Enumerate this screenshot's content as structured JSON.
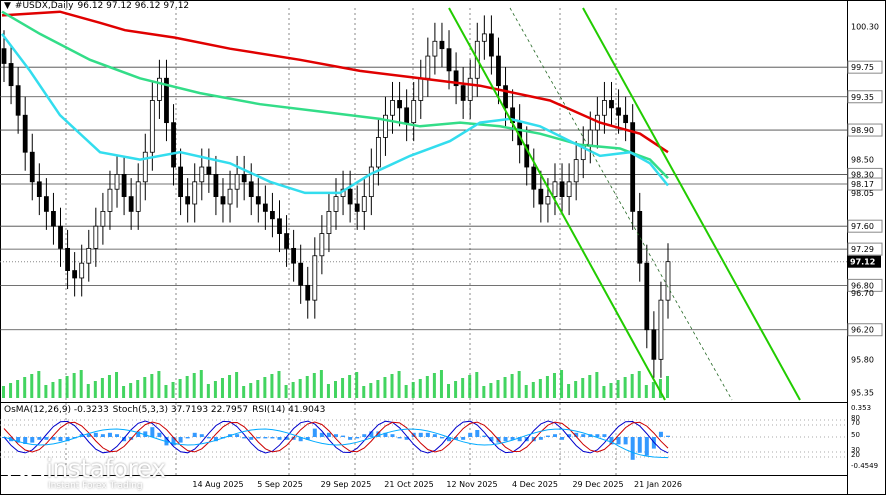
{
  "header": {
    "symbol": "#USDX,Daily",
    "ohlc": "96.12 97.12 96.12 97.12"
  },
  "indicator_header": {
    "osma": "OsMA(12,26,9) -0.3233",
    "stoch": "Stoch(5,3,3) 37.7193 22.7957",
    "rsi": "RSI(14) 41.9043"
  },
  "logo": {
    "brand": "instaforex",
    "tagline": "Instant Forex Trading"
  },
  "colors": {
    "ma_red": "#e00000",
    "ma_green": "#33dd88",
    "ma_cyan": "#33ddee",
    "channel_green": "#22cc00",
    "candle": "#000000",
    "volume": "#22cc44",
    "osma": "#3399ff",
    "stoch_main": "#0000cc",
    "stoch_signal": "#cc0000",
    "rsi": "#00aaff"
  },
  "chart_data": {
    "type": "candlestick",
    "symbol": "#USDX",
    "timeframe": "Daily",
    "y_range": [
      95.25,
      100.55
    ],
    "price_levels": [
      "100.30",
      "99.75",
      "99.35",
      "98.90",
      "98.50",
      "98.30",
      "98.17",
      "98.05",
      "97.60",
      "97.29",
      "97.12",
      "96.80",
      "96.70",
      "96.20",
      "95.80",
      "95.35"
    ],
    "highlighted_levels": [
      "99.75",
      "99.35",
      "98.90",
      "98.30",
      "98.17",
      "97.60",
      "97.29",
      "97.12",
      "96.80",
      "96.20"
    ],
    "current_price": "97.12",
    "x_labels": [
      "14 Aug 2025",
      "5 Sep 2025",
      "29 Sep 2025",
      "21 Oct 2025",
      "12 Nov 2025",
      "4 Dec 2025",
      "29 Dec 2025",
      "21 Jan 2026"
    ],
    "close_series": [
      99.8,
      99.5,
      99.1,
      98.6,
      98.2,
      98.0,
      97.8,
      97.6,
      97.3,
      97.0,
      96.9,
      97.1,
      97.3,
      97.6,
      97.8,
      98.1,
      98.3,
      98.0,
      97.8,
      98.2,
      98.6,
      99.3,
      99.6,
      99.0,
      98.4,
      98.0,
      97.9,
      98.2,
      98.4,
      98.3,
      98.0,
      97.9,
      98.1,
      98.3,
      98.2,
      98.0,
      97.9,
      97.8,
      97.7,
      97.5,
      97.3,
      97.1,
      96.8,
      96.6,
      97.2,
      97.5,
      97.8,
      98.0,
      98.1,
      97.9,
      97.8,
      98.0,
      98.4,
      98.8,
      99.1,
      99.3,
      99.2,
      99.0,
      99.3,
      99.6,
      99.9,
      100.1,
      100.0,
      99.7,
      99.5,
      99.3,
      99.6,
      100.1,
      100.2,
      99.9,
      99.5,
      99.2,
      99.0,
      98.7,
      98.4,
      98.1,
      97.9,
      98.0,
      98.2,
      98.0,
      98.2,
      98.5,
      98.7,
      98.9,
      99.1,
      99.3,
      99.2,
      99.1,
      99.0,
      97.8,
      97.1,
      96.2,
      95.8,
      96.6,
      97.12
    ],
    "ma_red": [
      [
        2,
        100.45
      ],
      [
        60,
        100.5
      ],
      [
        100,
        100.35
      ],
      [
        125,
        100.25
      ],
      [
        175,
        100.15
      ],
      [
        230,
        100.0
      ],
      [
        300,
        99.85
      ],
      [
        360,
        99.7
      ],
      [
        420,
        99.6
      ],
      [
        480,
        99.5
      ],
      [
        550,
        99.3
      ],
      [
        600,
        99.0
      ],
      [
        640,
        98.85
      ],
      [
        668,
        98.6
      ]
    ],
    "ma_green": [
      [
        2,
        100.5
      ],
      [
        40,
        100.2
      ],
      [
        90,
        99.85
      ],
      [
        140,
        99.6
      ],
      [
        200,
        99.4
      ],
      [
        260,
        99.25
      ],
      [
        320,
        99.15
      ],
      [
        380,
        99.05
      ],
      [
        420,
        98.95
      ],
      [
        460,
        99.0
      ],
      [
        500,
        98.95
      ],
      [
        540,
        98.85
      ],
      [
        580,
        98.7
      ],
      [
        620,
        98.65
      ],
      [
        650,
        98.5
      ],
      [
        668,
        98.25
      ]
    ],
    "ma_cyan": [
      [
        2,
        100.2
      ],
      [
        30,
        99.7
      ],
      [
        60,
        99.1
      ],
      [
        100,
        98.6
      ],
      [
        140,
        98.5
      ],
      [
        180,
        98.6
      ],
      [
        230,
        98.45
      ],
      [
        270,
        98.2
      ],
      [
        305,
        98.05
      ],
      [
        340,
        98.05
      ],
      [
        370,
        98.3
      ],
      [
        410,
        98.55
      ],
      [
        450,
        98.75
      ],
      [
        480,
        99.0
      ],
      [
        510,
        99.05
      ],
      [
        540,
        98.95
      ],
      [
        570,
        98.75
      ],
      [
        600,
        98.55
      ],
      [
        630,
        98.6
      ],
      [
        650,
        98.45
      ],
      [
        668,
        98.15
      ]
    ],
    "channels": [
      {
        "name": "",
        "points": [
          [
            449,
            100.55
          ],
          [
            665,
            95.25
          ]
        ]
      },
      {
        "name": "",
        "points": [
          [
            583,
            100.55
          ],
          [
            800,
            95.25
          ]
        ]
      },
      {
        "name": "",
        "points": [
          [
            510,
            100.55
          ],
          [
            732,
            95.25
          ]
        ],
        "style": "dashed-thin"
      }
    ]
  }
}
